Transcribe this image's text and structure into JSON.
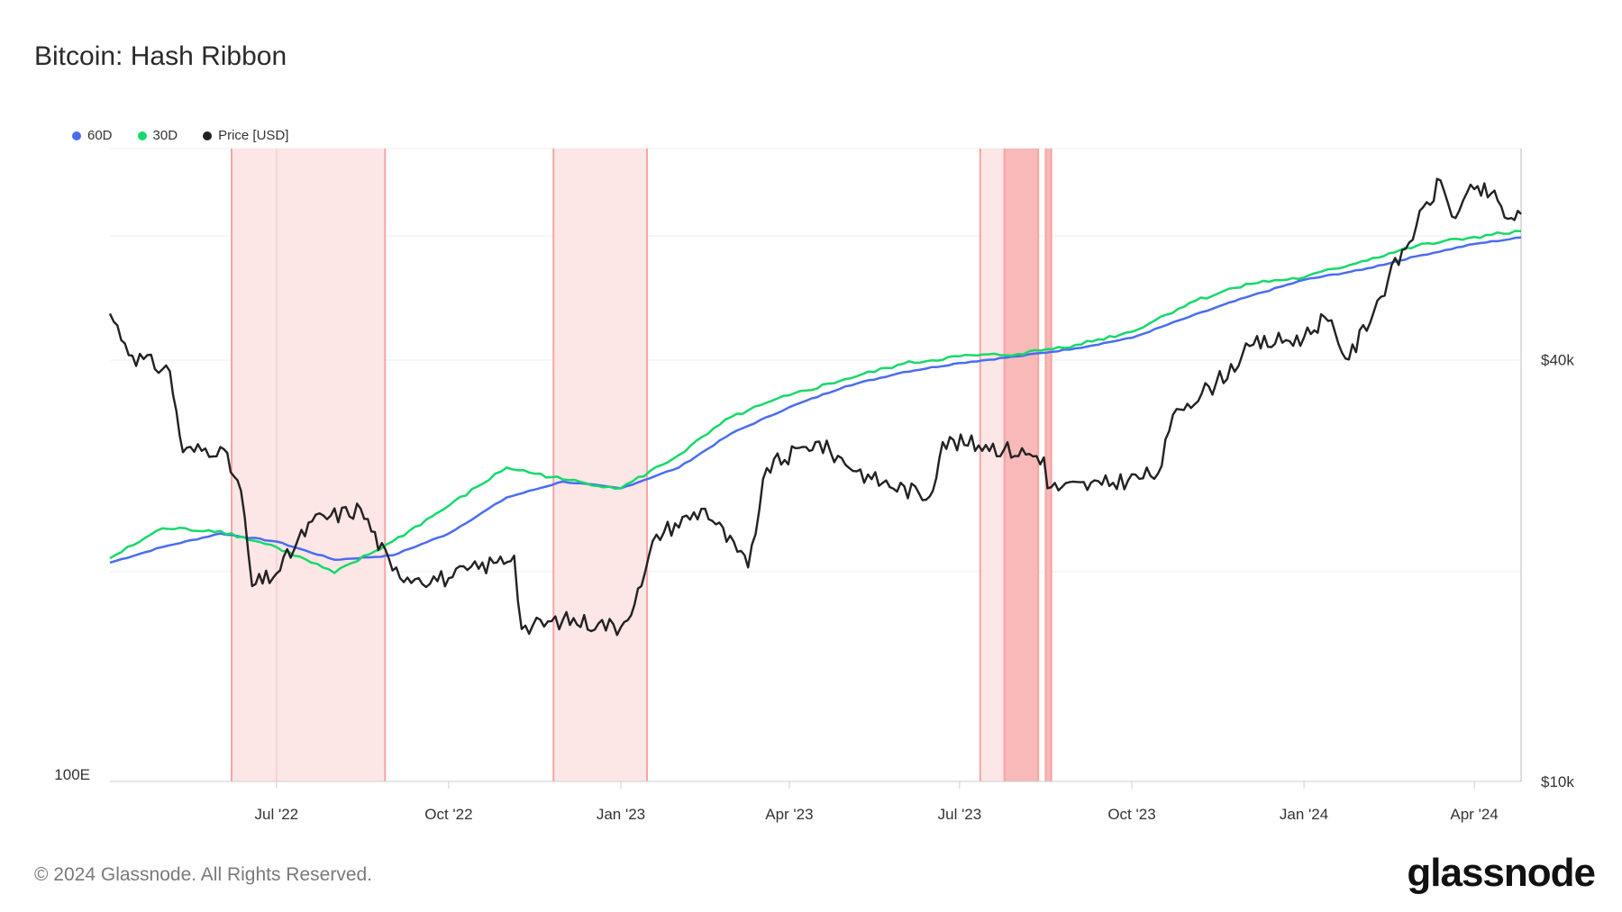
{
  "title": "Bitcoin: Hash Ribbon",
  "legend": [
    {
      "label": "60D",
      "color": "#4a6cf0"
    },
    {
      "label": "30D",
      "color": "#16d96a"
    },
    {
      "label": "Price [USD]",
      "color": "#222222"
    }
  ],
  "footer": {
    "copyright": "© 2024 Glassnode. All Rights Reserved.",
    "brand": "glassnode"
  },
  "colors": {
    "band_light": "#fde6e6",
    "band_dark": "#f8b9b9",
    "band_edge": "#f5a5a5",
    "grid": "#eeeeee"
  },
  "chart_data": {
    "type": "line",
    "title": "Bitcoin: Hash Ribbon",
    "x_axis": {
      "ticks": [
        "Jul '22",
        "Oct '22",
        "Jan '23",
        "Apr '23",
        "Jul '23",
        "Oct '23",
        "Jan '24",
        "Apr '24"
      ],
      "tick_dates": [
        "2022-07-01",
        "2022-10-01",
        "2023-01-01",
        "2023-04-01",
        "2023-07-01",
        "2023-10-01",
        "2024-01-01",
        "2024-04-01"
      ],
      "range": [
        "2022-04-03",
        "2024-04-26"
      ]
    },
    "left_axis": {
      "label": "100E",
      "scale": "log"
    },
    "right_axis": {
      "ticks": [
        "$40k",
        "$10k"
      ],
      "tick_values": [
        40000,
        10000
      ],
      "scale": "log",
      "range": [
        10000,
        80000
      ]
    },
    "series": [
      {
        "name": "60D",
        "color": "#4a6cf0",
        "points": [
          [
            "2022-04-03",
            207
          ],
          [
            "2022-05-01",
            218
          ],
          [
            "2022-06-01",
            228
          ],
          [
            "2022-07-01",
            222
          ],
          [
            "2022-08-01",
            209
          ],
          [
            "2022-09-01",
            212
          ],
          [
            "2022-10-01",
            228
          ],
          [
            "2022-11-01",
            257
          ],
          [
            "2022-12-01",
            271
          ],
          [
            "2023-01-01",
            265
          ],
          [
            "2023-02-01",
            284
          ],
          [
            "2023-03-01",
            318
          ],
          [
            "2023-04-01",
            347
          ],
          [
            "2023-05-01",
            372
          ],
          [
            "2023-06-01",
            390
          ],
          [
            "2023-07-01",
            402
          ],
          [
            "2023-08-01",
            411
          ],
          [
            "2023-09-01",
            422
          ],
          [
            "2023-10-01",
            437
          ],
          [
            "2023-11-01",
            469
          ],
          [
            "2023-12-01",
            500
          ],
          [
            "2024-01-01",
            530
          ],
          [
            "2024-02-01",
            548
          ],
          [
            "2024-03-01",
            573
          ],
          [
            "2024-04-01",
            597
          ],
          [
            "2024-04-26",
            610
          ]
        ]
      },
      {
        "name": "30D",
        "color": "#16d96a",
        "points": [
          [
            "2022-04-03",
            210
          ],
          [
            "2022-05-01",
            232
          ],
          [
            "2022-06-01",
            230
          ],
          [
            "2022-07-01",
            218
          ],
          [
            "2022-08-01",
            200
          ],
          [
            "2022-09-01",
            222
          ],
          [
            "2022-10-01",
            250
          ],
          [
            "2022-11-01",
            284
          ],
          [
            "2022-12-01",
            273
          ],
          [
            "2023-01-01",
            265
          ],
          [
            "2023-02-01",
            296
          ],
          [
            "2023-03-01",
            336
          ],
          [
            "2023-04-01",
            361
          ],
          [
            "2023-05-01",
            381
          ],
          [
            "2023-06-01",
            401
          ],
          [
            "2023-07-01",
            411
          ],
          [
            "2023-08-01",
            414
          ],
          [
            "2023-09-01",
            427
          ],
          [
            "2023-10-01",
            446
          ],
          [
            "2023-11-01",
            491
          ],
          [
            "2023-12-01",
            523
          ],
          [
            "2024-01-01",
            534
          ],
          [
            "2024-02-01",
            564
          ],
          [
            "2024-03-01",
            593
          ],
          [
            "2024-04-01",
            611
          ],
          [
            "2024-04-26",
            623
          ]
        ]
      },
      {
        "name": "Price [USD]",
        "color": "#222222",
        "points": [
          [
            "2022-04-03",
            46500
          ],
          [
            "2022-04-15",
            40500
          ],
          [
            "2022-05-05",
            38500
          ],
          [
            "2022-05-12",
            29500
          ],
          [
            "2022-06-01",
            30000
          ],
          [
            "2022-06-12",
            26000
          ],
          [
            "2022-06-18",
            19000
          ],
          [
            "2022-07-01",
            19800
          ],
          [
            "2022-07-20",
            23500
          ],
          [
            "2022-08-15",
            24500
          ],
          [
            "2022-09-01",
            20000
          ],
          [
            "2022-09-15",
            19500
          ],
          [
            "2022-10-01",
            19500
          ],
          [
            "2022-10-25",
            20500
          ],
          [
            "2022-11-05",
            21000
          ],
          [
            "2022-11-09",
            16500
          ],
          [
            "2022-12-01",
            17000
          ],
          [
            "2022-12-20",
            16800
          ],
          [
            "2023-01-01",
            16600
          ],
          [
            "2023-01-12",
            19000
          ],
          [
            "2023-01-20",
            22500
          ],
          [
            "2023-02-15",
            24500
          ],
          [
            "2023-03-10",
            20200
          ],
          [
            "2023-03-20",
            28000
          ],
          [
            "2023-04-10",
            30000
          ],
          [
            "2023-04-15",
            30500
          ],
          [
            "2023-05-15",
            27000
          ],
          [
            "2023-06-15",
            25500
          ],
          [
            "2023-06-22",
            30500
          ],
          [
            "2023-07-15",
            30200
          ],
          [
            "2023-08-15",
            29000
          ],
          [
            "2023-08-17",
            26200
          ],
          [
            "2023-09-15",
            26500
          ],
          [
            "2023-10-15",
            27500
          ],
          [
            "2023-10-25",
            34000
          ],
          [
            "2023-11-15",
            37000
          ],
          [
            "2023-12-05",
            42000
          ],
          [
            "2024-01-01",
            43000
          ],
          [
            "2024-01-12",
            46000
          ],
          [
            "2024-01-25",
            40000
          ],
          [
            "2024-02-15",
            52000
          ],
          [
            "2024-03-01",
            62000
          ],
          [
            "2024-03-14",
            72000
          ],
          [
            "2024-03-20",
            64000
          ],
          [
            "2024-04-01",
            70000
          ],
          [
            "2024-04-10",
            69000
          ],
          [
            "2024-04-19",
            63500
          ],
          [
            "2024-04-26",
            64500
          ]
        ]
      }
    ],
    "capitulation_bands": [
      {
        "start": "2022-06-07",
        "end": "2022-08-28",
        "shade": "light"
      },
      {
        "start": "2022-11-26",
        "end": "2023-01-15",
        "shade": "light"
      },
      {
        "start": "2023-07-12",
        "end": "2023-07-25",
        "shade": "light"
      },
      {
        "start": "2023-07-25",
        "end": "2023-08-12",
        "shade": "dark"
      },
      {
        "start": "2023-08-16",
        "end": "2023-08-19",
        "shade": "dark"
      }
    ],
    "grid": true,
    "legend_position": "top-left"
  }
}
